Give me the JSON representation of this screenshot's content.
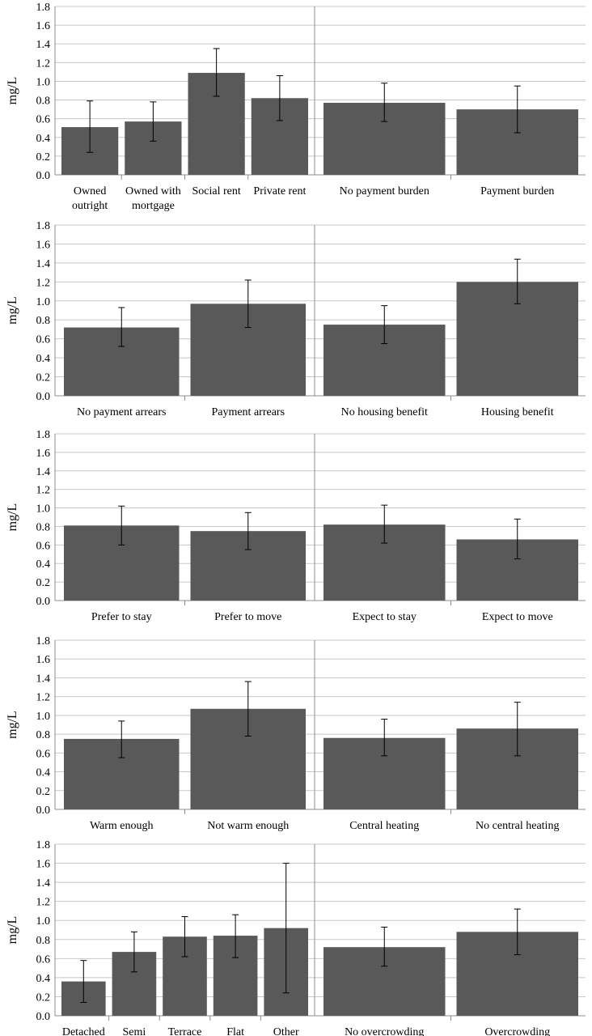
{
  "chart_data": [
    {
      "type": "bar",
      "ylabel": "mg/L",
      "ylim": [
        0,
        1.8
      ],
      "yticks": [
        "0.0",
        "0.2",
        "0.4",
        "0.6",
        "0.8",
        "1.0",
        "1.2",
        "1.4",
        "1.6",
        "1.8"
      ],
      "grid": true,
      "groups": [
        {
          "categories": [
            [
              "Owned",
              "outright"
            ],
            [
              "Owned with",
              "mortgage"
            ],
            [
              "Social rent"
            ],
            [
              "Private rent"
            ]
          ],
          "values": [
            0.51,
            0.57,
            1.09,
            0.82
          ],
          "err_low": [
            0.24,
            0.36,
            0.84,
            0.58
          ],
          "err_high": [
            0.79,
            0.78,
            1.35,
            1.06
          ]
        },
        {
          "categories": [
            [
              "No payment burden"
            ],
            [
              "Payment burden"
            ]
          ],
          "values": [
            0.77,
            0.7
          ],
          "err_low": [
            0.57,
            0.45
          ],
          "err_high": [
            0.98,
            0.95
          ]
        }
      ]
    },
    {
      "type": "bar",
      "ylabel": "mg/L",
      "ylim": [
        0,
        1.8
      ],
      "yticks": [
        "0.0",
        "0.2",
        "0.4",
        "0.6",
        "0.8",
        "1.0",
        "1.2",
        "1.4",
        "1.6",
        "1.8"
      ],
      "grid": true,
      "groups": [
        {
          "categories": [
            [
              "No payment arrears"
            ],
            [
              "Payment arrears"
            ]
          ],
          "values": [
            0.72,
            0.97
          ],
          "err_low": [
            0.52,
            0.72
          ],
          "err_high": [
            0.93,
            1.22
          ]
        },
        {
          "categories": [
            [
              "No housing benefit"
            ],
            [
              "Housing benefit"
            ]
          ],
          "values": [
            0.75,
            1.2
          ],
          "err_low": [
            0.55,
            0.97
          ],
          "err_high": [
            0.95,
            1.44
          ]
        }
      ]
    },
    {
      "type": "bar",
      "ylabel": "mg/L",
      "ylim": [
        0,
        1.8
      ],
      "yticks": [
        "0.0",
        "0.2",
        "0.4",
        "0.6",
        "0.8",
        "1.0",
        "1.2",
        "1.4",
        "1.6",
        "1.8"
      ],
      "grid": true,
      "groups": [
        {
          "categories": [
            [
              "Prefer to stay"
            ],
            [
              "Prefer to move"
            ]
          ],
          "values": [
            0.81,
            0.75
          ],
          "err_low": [
            0.6,
            0.55
          ],
          "err_high": [
            1.02,
            0.95
          ]
        },
        {
          "categories": [
            [
              "Expect to stay"
            ],
            [
              "Expect to move"
            ]
          ],
          "values": [
            0.82,
            0.66
          ],
          "err_low": [
            0.62,
            0.45
          ],
          "err_high": [
            1.03,
            0.88
          ]
        }
      ]
    },
    {
      "type": "bar",
      "ylabel": "mg/L",
      "ylim": [
        0,
        1.8
      ],
      "yticks": [
        "0.0",
        "0.2",
        "0.4",
        "0.6",
        "0.8",
        "1.0",
        "1.2",
        "1.4",
        "1.6",
        "1.8"
      ],
      "grid": true,
      "groups": [
        {
          "categories": [
            [
              "Warm enough"
            ],
            [
              "Not warm enough"
            ]
          ],
          "values": [
            0.75,
            1.07
          ],
          "err_low": [
            0.55,
            0.78
          ],
          "err_high": [
            0.94,
            1.36
          ]
        },
        {
          "categories": [
            [
              "Central heating"
            ],
            [
              "No central heating"
            ]
          ],
          "values": [
            0.76,
            0.86
          ],
          "err_low": [
            0.57,
            0.57
          ],
          "err_high": [
            0.96,
            1.14
          ]
        }
      ]
    },
    {
      "type": "bar",
      "ylabel": "mg/L",
      "ylim": [
        0,
        1.8
      ],
      "yticks": [
        "0.0",
        "0.2",
        "0.4",
        "0.6",
        "0.8",
        "1.0",
        "1.2",
        "1.4",
        "1.6",
        "1.8"
      ],
      "grid": true,
      "groups": [
        {
          "categories": [
            [
              "Detached"
            ],
            [
              "Semi"
            ],
            [
              "Terrace"
            ],
            [
              "Flat"
            ],
            [
              "Other"
            ]
          ],
          "values": [
            0.36,
            0.67,
            0.83,
            0.84,
            0.92
          ],
          "err_low": [
            0.14,
            0.46,
            0.62,
            0.61,
            0.24
          ],
          "err_high": [
            0.58,
            0.88,
            1.04,
            1.06,
            1.6
          ]
        },
        {
          "categories": [
            [
              "No overcrowding"
            ],
            [
              "Overcrowding"
            ]
          ],
          "values": [
            0.72,
            0.88
          ],
          "err_low": [
            0.52,
            0.64
          ],
          "err_high": [
            0.93,
            1.12
          ]
        }
      ]
    }
  ],
  "colors": {
    "bar": "#595959",
    "grid": "#c8c8c8",
    "axis": "#8c8c8c",
    "error_bar": "#000000"
  }
}
